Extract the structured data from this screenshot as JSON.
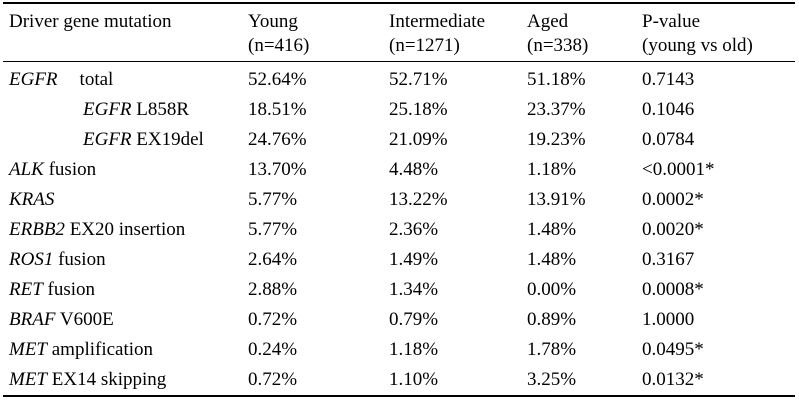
{
  "table": {
    "headers": [
      {
        "line1": "Driver gene mutation",
        "line2": ""
      },
      {
        "line1": "Young",
        "line2": "(n=416)"
      },
      {
        "line1": "Intermediate",
        "line2": "(n=1271)"
      },
      {
        "line1": "Aged",
        "line2": "(n=338)"
      },
      {
        "line1": "P-value",
        "line2": "(young vs old)"
      }
    ],
    "rows": [
      {
        "gene": "EGFR",
        "suffix": "total",
        "young": "52.64%",
        "intermediate": "52.71%",
        "aged": "51.18%",
        "pvalue": "0.7143"
      },
      {
        "gene": "EGFR",
        "suffix": " L858R",
        "young": "18.51%",
        "intermediate": "25.18%",
        "aged": "23.37%",
        "pvalue": "0.1046"
      },
      {
        "gene": "EGFR",
        "suffix": " EX19del",
        "young": "24.76%",
        "intermediate": "21.09%",
        "aged": "19.23%",
        "pvalue": "0.0784"
      },
      {
        "gene": "ALK",
        "suffix": " fusion",
        "young": "13.70%",
        "intermediate": "4.48%",
        "aged": "1.18%",
        "pvalue": "<0.0001*"
      },
      {
        "gene": "KRAS",
        "suffix": "",
        "young": "5.77%",
        "intermediate": "13.22%",
        "aged": "13.91%",
        "pvalue": "0.0002*"
      },
      {
        "gene": "ERBB2",
        "suffix": " EX20 insertion",
        "young": "5.77%",
        "intermediate": "2.36%",
        "aged": "1.48%",
        "pvalue": "0.0020*"
      },
      {
        "gene": "ROS1",
        "suffix": " fusion",
        "young": "2.64%",
        "intermediate": "1.49%",
        "aged": "1.48%",
        "pvalue": "0.3167"
      },
      {
        "gene": "RET",
        "suffix": " fusion",
        "young": "2.88%",
        "intermediate": "1.34%",
        "aged": "0.00%",
        "pvalue": "0.0008*"
      },
      {
        "gene": "BRAF",
        "suffix": " V600E",
        "young": "0.72%",
        "intermediate": "0.79%",
        "aged": "0.89%",
        "pvalue": "1.0000"
      },
      {
        "gene": "MET",
        "suffix": " amplification",
        "young": "0.24%",
        "intermediate": "1.18%",
        "aged": "1.78%",
        "pvalue": "0.0495*"
      },
      {
        "gene": "MET",
        "suffix": " EX14 skipping",
        "young": "0.72%",
        "intermediate": "1.10%",
        "aged": "3.25%",
        "pvalue": "0.0132*"
      }
    ]
  }
}
